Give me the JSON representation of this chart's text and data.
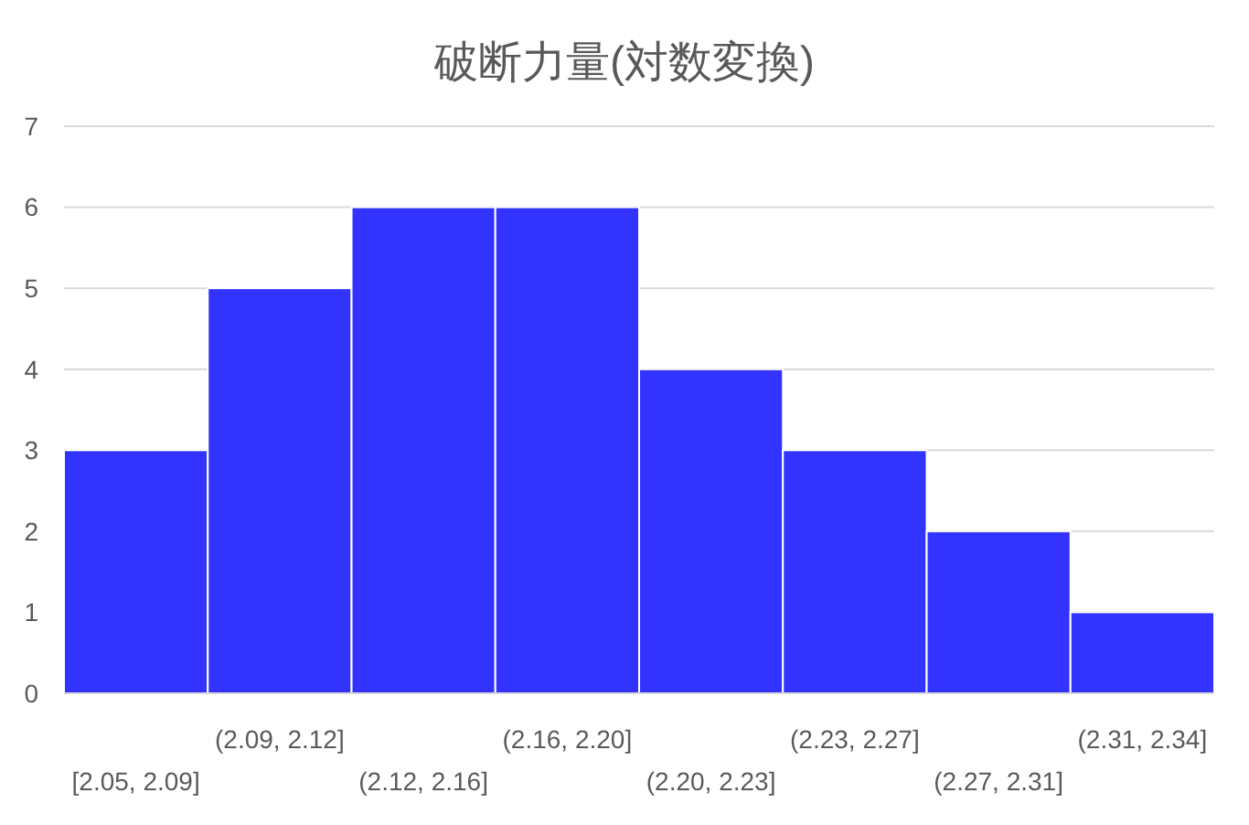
{
  "chart_data": {
    "type": "bar",
    "title": "破断力量(対数変換)",
    "categories": [
      "[2.05, 2.09]",
      "(2.09, 2.12]",
      "(2.12, 2.16]",
      "(2.16, 2.20]",
      "(2.20, 2.23]",
      "(2.23, 2.27]",
      "(2.27, 2.31]",
      "(2.31, 2.34]"
    ],
    "values": [
      3,
      5,
      6,
      6,
      4,
      3,
      2,
      1
    ],
    "color": "#3333ff",
    "ylim": [
      0,
      7
    ],
    "yticks": [
      0,
      1,
      2,
      3,
      4,
      5,
      6,
      7
    ],
    "grid": "y"
  }
}
